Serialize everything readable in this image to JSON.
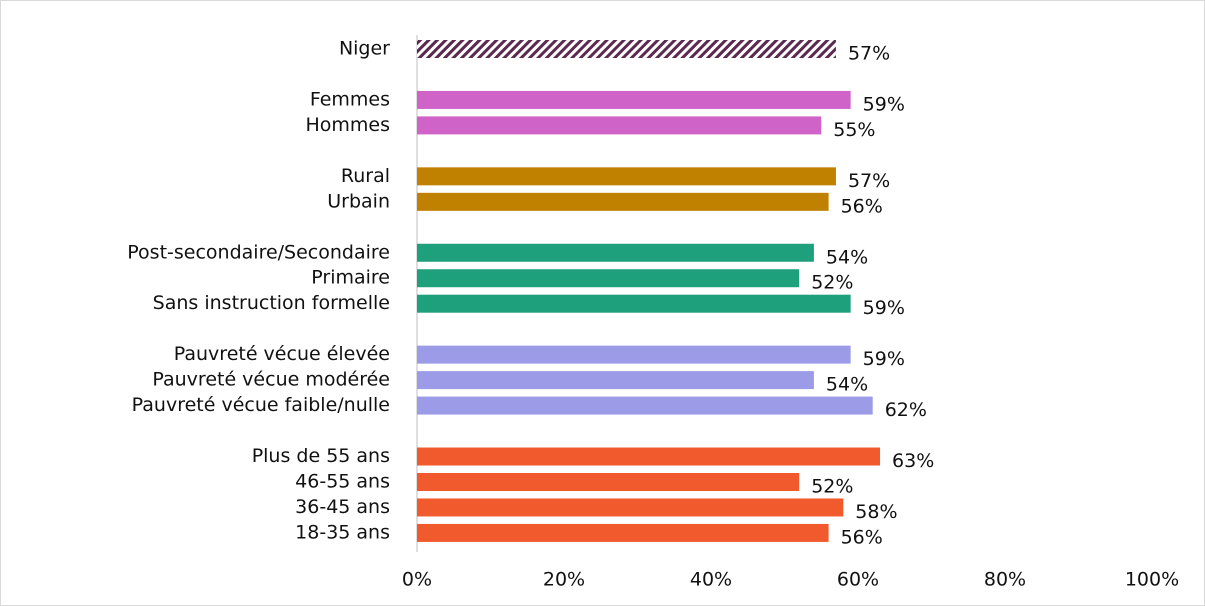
{
  "chart_data": {
    "type": "bar",
    "orientation": "horizontal",
    "groups": [
      {
        "color": "#5b2a4e",
        "pattern": "hatch",
        "categories": [
          "Niger"
        ],
        "values": [
          57
        ],
        "value_labels": [
          "57%"
        ]
      },
      {
        "color": "#d063c8",
        "categories": [
          "Femmes",
          "Hommes"
        ],
        "values": [
          59,
          55
        ],
        "value_labels": [
          "59%",
          "55%"
        ]
      },
      {
        "color": "#c08000",
        "categories": [
          "Rural",
          "Urbain"
        ],
        "values": [
          57,
          56
        ],
        "value_labels": [
          "57%",
          "56%"
        ]
      },
      {
        "color": "#1fa07c",
        "categories": [
          "Post-secondaire/Secondaire",
          "Primaire",
          "Sans instruction formelle"
        ],
        "values": [
          54,
          52,
          59
        ],
        "value_labels": [
          "54%",
          "52%",
          "59%"
        ]
      },
      {
        "color": "#9b9be8",
        "categories": [
          "Pauvreté vécue élevée",
          "Pauvreté vécue modérée",
          "Pauvreté vécue faible/nulle"
        ],
        "values": [
          59,
          54,
          62
        ],
        "value_labels": [
          "59%",
          "54%",
          "62%"
        ]
      },
      {
        "color": "#f05a2c",
        "categories": [
          "Plus de 55 ans",
          "46-55 ans",
          "36-45 ans",
          "18-35 ans"
        ],
        "values": [
          63,
          52,
          58,
          56
        ],
        "value_labels": [
          "63%",
          "52%",
          "58%",
          "56%"
        ]
      }
    ],
    "xlim": [
      0,
      100
    ],
    "xticks": [
      {
        "value": 0,
        "label": "0%"
      },
      {
        "value": 20,
        "label": "20%"
      },
      {
        "value": 40,
        "label": "40%"
      },
      {
        "value": 60,
        "label": "60%"
      },
      {
        "value": 80,
        "label": "80%"
      },
      {
        "value": 100,
        "label": "100%"
      }
    ],
    "grid": false
  }
}
